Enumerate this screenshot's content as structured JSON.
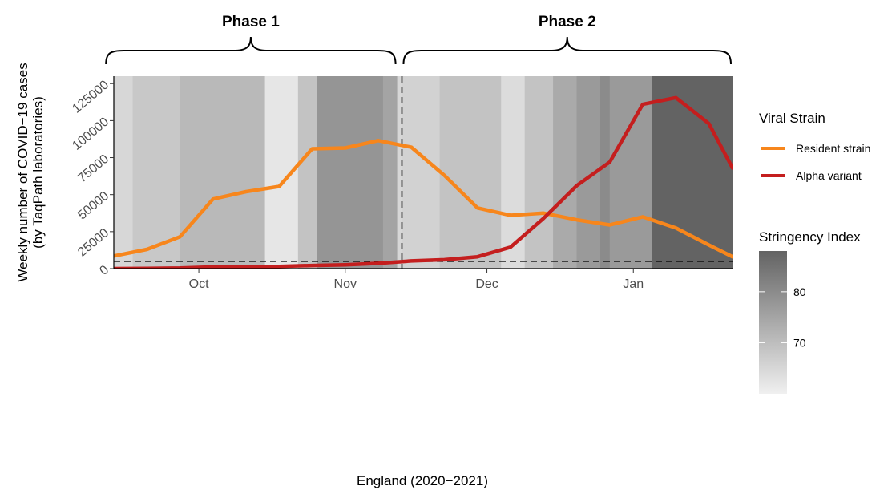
{
  "chart_data": {
    "type": "line",
    "annotations": {
      "phases": [
        {
          "label": "Phase 1",
          "start": "2020-09-11",
          "end": "2020-11-12"
        },
        {
          "label": "Phase 2",
          "start": "2020-11-13",
          "end": "2021-01-22"
        }
      ],
      "vertical_dashed_line_x": "2020-11-13",
      "horizontal_dashed_line_y": 5000
    },
    "xlabel": "England (2020−2021)",
    "ylabel": [
      "Weekly number of COVID−19 cases",
      "(by TaqPath laboratories)"
    ],
    "xlim": [
      "2020-09-13",
      "2021-01-22"
    ],
    "ylim": [
      0,
      130000
    ],
    "x_ticks": [
      {
        "date": "2020-10-01",
        "label": "Oct"
      },
      {
        "date": "2020-11-01",
        "label": "Nov"
      },
      {
        "date": "2020-12-01",
        "label": "Dec"
      },
      {
        "date": "2021-01-01",
        "label": "Jan"
      }
    ],
    "y_ticks": [
      {
        "value": 0,
        "label": "0"
      },
      {
        "value": 25000,
        "label": "25000"
      },
      {
        "value": 50000,
        "label": "50000"
      },
      {
        "value": 75000,
        "label": "75000"
      },
      {
        "value": 100000,
        "label": "100000"
      },
      {
        "value": 125000,
        "label": "125000"
      }
    ],
    "grid": false,
    "x": [
      "2020-09-13",
      "2020-09-20",
      "2020-09-27",
      "2020-10-04",
      "2020-10-11",
      "2020-10-18",
      "2020-10-25",
      "2020-11-01",
      "2020-11-08",
      "2020-11-15",
      "2020-11-22",
      "2020-11-29",
      "2020-12-06",
      "2020-12-13",
      "2020-12-20",
      "2020-12-27",
      "2021-01-03",
      "2021-01-10",
      "2021-01-17",
      "2021-01-22"
    ],
    "series": [
      {
        "name": "Resident strain",
        "color": "#f7861c",
        "values": [
          8500,
          13000,
          21500,
          47000,
          52000,
          55500,
          81000,
          81500,
          86500,
          82000,
          63000,
          41000,
          36000,
          37500,
          33000,
          29500,
          35000,
          27500,
          16000,
          8000
        ]
      },
      {
        "name": "Alpha variant",
        "color": "#c41e1e",
        "values": [
          0,
          100,
          400,
          1200,
          1400,
          1500,
          2100,
          2600,
          3600,
          5200,
          6000,
          8000,
          14500,
          34000,
          56000,
          72000,
          111000,
          115500,
          98000,
          68000
        ]
      }
    ],
    "stringency_background": {
      "bands": [
        {
          "start": "2020-09-13",
          "end": "2020-09-17",
          "value": 65
        },
        {
          "start": "2020-09-17",
          "end": "2020-09-27",
          "value": 68
        },
        {
          "start": "2020-09-27",
          "end": "2020-10-15",
          "value": 71
        },
        {
          "start": "2020-10-15",
          "end": "2020-10-22",
          "value": 62
        },
        {
          "start": "2020-10-22",
          "end": "2020-10-26",
          "value": 69
        },
        {
          "start": "2020-10-26",
          "end": "2020-11-09",
          "value": 78
        },
        {
          "start": "2020-11-09",
          "end": "2020-11-12",
          "value": 75
        },
        {
          "start": "2020-11-12",
          "end": "2020-11-13",
          "value": 65
        },
        {
          "start": "2020-11-13",
          "end": "2020-11-21",
          "value": 66
        },
        {
          "start": "2020-11-21",
          "end": "2020-12-04",
          "value": 69
        },
        {
          "start": "2020-12-04",
          "end": "2020-12-09",
          "value": 64
        },
        {
          "start": "2020-12-09",
          "end": "2020-12-15",
          "value": 69
        },
        {
          "start": "2020-12-15",
          "end": "2020-12-20",
          "value": 74
        },
        {
          "start": "2020-12-20",
          "end": "2020-12-25",
          "value": 77
        },
        {
          "start": "2020-12-25",
          "end": "2020-12-27",
          "value": 80
        },
        {
          "start": "2020-12-27",
          "end": "2021-01-05",
          "value": 77
        },
        {
          "start": "2021-01-05",
          "end": "2021-01-22",
          "value": 88
        }
      ]
    },
    "legend": {
      "placement": "right",
      "title": "Viral Strain",
      "entries": [
        "Resident strain",
        "Alpha variant"
      ]
    },
    "colorbar": {
      "title": "Stringency Index",
      "min": 60,
      "max": 88,
      "ticks": [
        {
          "value": 70,
          "label": "70"
        },
        {
          "value": 80,
          "label": "80"
        }
      ],
      "low_color": "#f0f0f0",
      "high_color": "#636363"
    }
  }
}
